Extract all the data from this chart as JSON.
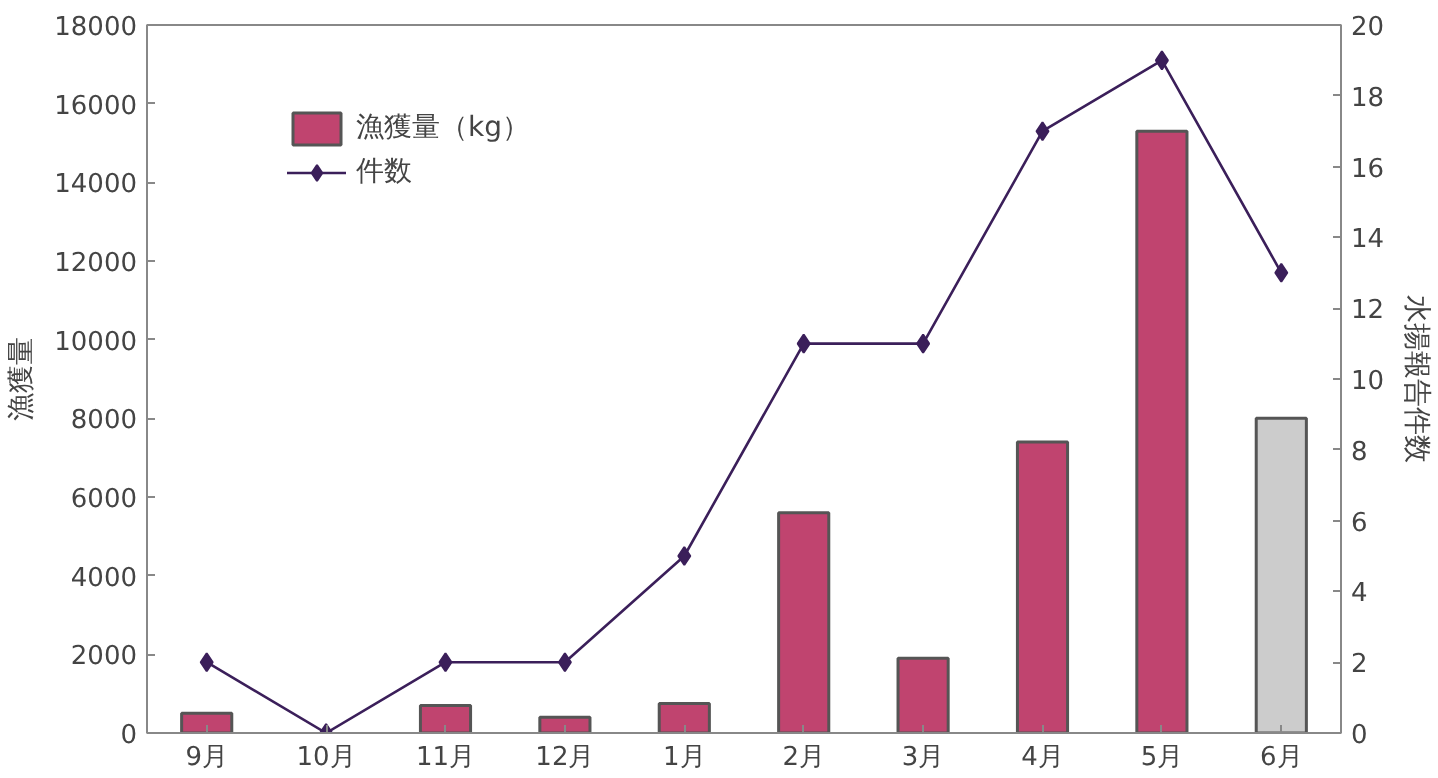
{
  "chart_data": {
    "type": "bar",
    "ylabel": "漁獲量",
    "y2label": "水揚報告件数",
    "categories": [
      "9月",
      "10月",
      "11月",
      "12月",
      "1月",
      "2月",
      "3月",
      "4月",
      "5月",
      "6月"
    ],
    "series": [
      {
        "name": "漁獲量（kg）",
        "colors": [
          "#c0446f",
          "#c0446f",
          "#c0446f",
          "#c0446f",
          "#c0446f",
          "#c0446f",
          "#c0446f",
          "#c0446f",
          "#c0446f",
          "#cccccc"
        ],
        "values": [
          500,
          null,
          700,
          400,
          750,
          5600,
          1900,
          7400,
          15300,
          8000
        ]
      },
      {
        "name": "件数",
        "type": "line",
        "axis": "y2",
        "color": "#3b1f5a",
        "marker": "diamond",
        "values": [
          2,
          0,
          2,
          2,
          5,
          11,
          11,
          17,
          19,
          13
        ]
      }
    ],
    "ylim": [
      0,
      18000
    ],
    "yticks": [
      0,
      2000,
      4000,
      6000,
      8000,
      10000,
      12000,
      14000,
      16000,
      18000
    ],
    "y2lim": [
      0,
      20
    ],
    "y2ticks": [
      0,
      2,
      4,
      6,
      8,
      10,
      12,
      14,
      16,
      18,
      20
    ],
    "grid": false,
    "legend": "top left"
  }
}
